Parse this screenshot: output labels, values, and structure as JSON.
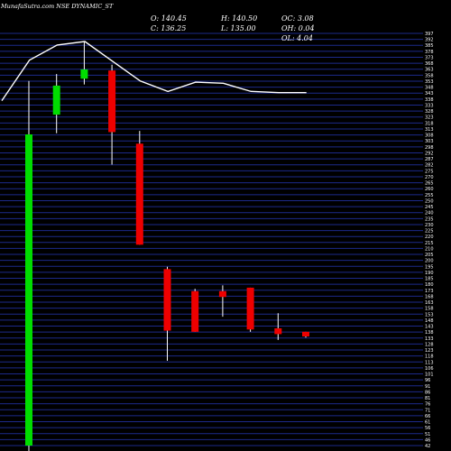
{
  "header": {
    "title": "MunafaSutra.com NSE DYNAMIC_ST",
    "open_label": "O: 140.45",
    "high_label": "H: 140.50",
    "oc_label": "OC: 3.08",
    "close_label": "C: 136.25",
    "low_label": "L: 135.00",
    "oh_label": "OH: 0.04",
    "ol_label": "OL: 4.04"
  },
  "colors": {
    "background": "#000000",
    "grid": "#1c2a8a",
    "up": "#00dd00",
    "down": "#ee0000",
    "wick": "#ffffff",
    "line": "#ffffff",
    "text": "#ffffff"
  },
  "chart_data": {
    "type": "candlestick",
    "ylim": [
      42,
      397
    ],
    "y_ticks": [
      397,
      392,
      385,
      378,
      373,
      368,
      363,
      358,
      353,
      348,
      343,
      338,
      333,
      328,
      323,
      318,
      313,
      308,
      303,
      298,
      292,
      287,
      282,
      275,
      270,
      265,
      260,
      255,
      250,
      245,
      240,
      235,
      230,
      225,
      220,
      215,
      210,
      205,
      200,
      195,
      190,
      185,
      180,
      173,
      168,
      163,
      158,
      153,
      148,
      143,
      138,
      133,
      128,
      123,
      118,
      113,
      106,
      101,
      96,
      91,
      86,
      81,
      76,
      71,
      66,
      61,
      56,
      51,
      46,
      42
    ],
    "candles": [
      {
        "open": 42,
        "close": 310,
        "high": 356,
        "low": 32
      },
      {
        "open": 327,
        "close": 352,
        "high": 362,
        "low": 311
      },
      {
        "open": 358,
        "close": 366,
        "high": 390,
        "low": 353
      },
      {
        "open": 365,
        "close": 312,
        "high": 370,
        "low": 284
      },
      {
        "open": 302,
        "close": 215,
        "high": 313,
        "low": 215
      },
      {
        "open": 194,
        "close": 141,
        "high": 196,
        "low": 115
      },
      {
        "open": 175,
        "close": 140,
        "high": 177,
        "low": 140
      },
      {
        "open": 175,
        "close": 170,
        "high": 180,
        "low": 153
      },
      {
        "open": 178,
        "close": 142,
        "high": 178,
        "low": 140
      },
      {
        "open": 143,
        "close": 138,
        "high": 156,
        "low": 133
      },
      {
        "open": 140,
        "close": 136,
        "high": 140,
        "low": 135
      }
    ],
    "line": [
      339,
      374,
      387,
      390,
      373,
      356,
      347,
      355,
      354,
      347,
      346,
      346
    ]
  }
}
